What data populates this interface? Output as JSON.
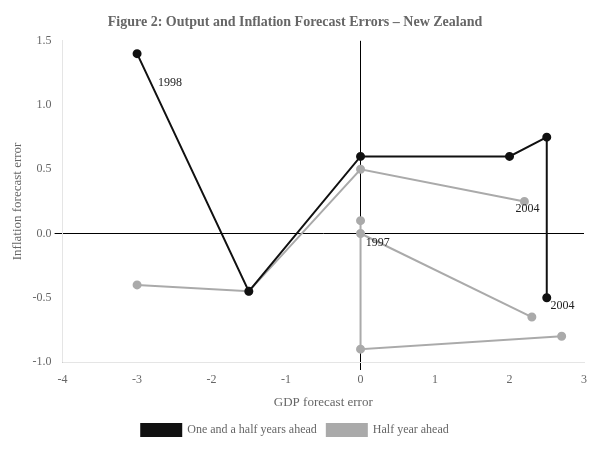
{
  "chart_data": {
    "type": "line",
    "title": "Figure 2: Output and Inflation Forecast Errors – New Zealand",
    "x_label": "GDP forecast error",
    "y_label": "Inflation forecast error",
    "xlim": [
      -4,
      3
    ],
    "ylim": [
      -1.0,
      1.5
    ],
    "xticks": [
      -4,
      -3,
      -2,
      -1,
      0,
      1,
      2,
      3
    ],
    "yticks": [
      {
        "value": -1.0,
        "label": "-1.0"
      },
      {
        "value": -0.5,
        "label": "-0.5"
      },
      {
        "value": 0.0,
        "label": "0.0"
      },
      {
        "value": 0.5,
        "label": "0.5"
      },
      {
        "value": 1.0,
        "label": "1.0"
      },
      {
        "value": 1.5,
        "label": "1.5"
      }
    ],
    "grid": false,
    "legend": "bottom",
    "series": [
      {
        "name": "Half year ahead",
        "color": "#aaaaaa",
        "marker": "circle",
        "x": [
          -3.0,
          -1.5,
          0.0,
          2.2,
          null,
          0.0,
          0.0,
          2.7,
          null,
          0.0,
          2.3
        ],
        "values": [
          -0.4,
          -0.45,
          0.5,
          0.25,
          null,
          0.1,
          -0.9,
          -0.8,
          null,
          0.0,
          -0.65
        ]
      },
      {
        "name": "One and a half years ahead",
        "color": "#111111",
        "marker": "circle",
        "x": [
          -3.0,
          -1.5,
          0.0,
          2.0,
          2.5,
          2.5
        ],
        "values": [
          1.4,
          -0.45,
          0.6,
          0.6,
          0.75,
          -0.5
        ]
      }
    ],
    "annotations": [
      {
        "text": "1998",
        "x": -2.72,
        "y": 1.17
      },
      {
        "text": "1997",
        "x": 0.07,
        "y": -0.07
      },
      {
        "text": "2004",
        "x": 2.08,
        "y": 0.19
      },
      {
        "text": "2004",
        "x": 2.55,
        "y": -0.56
      }
    ]
  }
}
